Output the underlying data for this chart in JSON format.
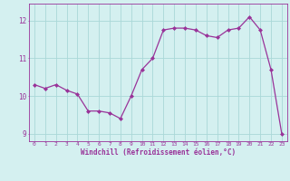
{
  "x": [
    0,
    1,
    2,
    3,
    4,
    5,
    6,
    7,
    8,
    9,
    10,
    11,
    12,
    13,
    14,
    15,
    16,
    17,
    18,
    19,
    20,
    21,
    22,
    23
  ],
  "y": [
    10.3,
    10.2,
    10.3,
    10.15,
    10.05,
    9.6,
    9.6,
    9.55,
    9.4,
    10.0,
    10.7,
    11.0,
    11.75,
    11.8,
    11.8,
    11.75,
    11.6,
    11.55,
    11.75,
    11.8,
    12.1,
    11.75,
    10.7,
    9.0
  ],
  "line_color": "#993399",
  "marker": "D",
  "marker_size": 2,
  "bg_color": "#d4f0f0",
  "grid_color": "#aad8d8",
  "xlabel": "Windchill (Refroidissement éolien,°C)",
  "xlabel_color": "#993399",
  "tick_color": "#993399",
  "ylim": [
    8.8,
    12.45
  ],
  "xlim": [
    -0.5,
    23.5
  ],
  "xticks": [
    0,
    1,
    2,
    3,
    4,
    5,
    6,
    7,
    8,
    9,
    10,
    11,
    12,
    13,
    14,
    15,
    16,
    17,
    18,
    19,
    20,
    21,
    22,
    23
  ],
  "yticks": [
    9,
    10,
    11,
    12
  ],
  "figsize": [
    3.2,
    2.0
  ],
  "dpi": 100
}
